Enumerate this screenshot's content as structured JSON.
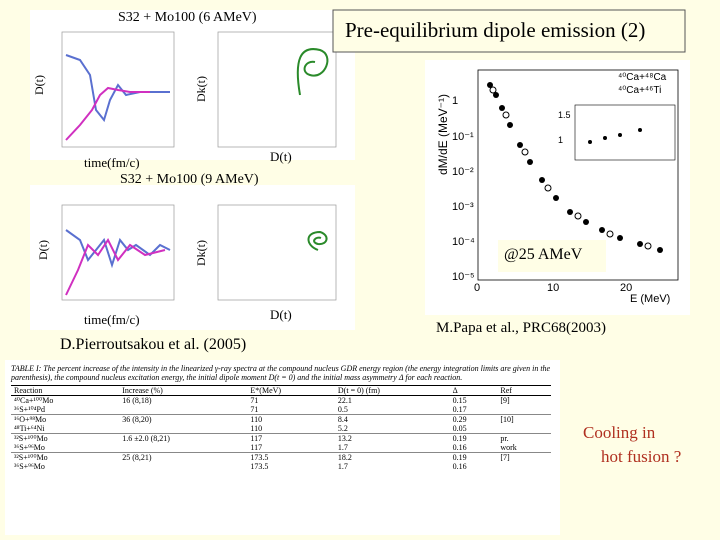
{
  "slide_title": "Pre-equilibrium dipole emission (2)",
  "left_panels": [
    {
      "title": "S32 + Mo100 (6 AMeV)",
      "y_label_left": "D(t)",
      "y_label_right": "Dk(t)",
      "x_label_left": "time(fm/c)",
      "x_label_right": "D(t)"
    },
    {
      "title": "S32 + Mo100 (9 AMeV)",
      "y_label_left": "D(t)",
      "y_label_right": "Dk(t)",
      "x_label_left": "time(fm/c)",
      "x_label_right": "D(t)"
    }
  ],
  "left_credit": "D.Pierroutsakou et al. (2005)",
  "right_plot": {
    "annotation": "@25 AMeV",
    "legend": [
      "⁴⁰Ca+⁴⁸Ca",
      "⁴⁰Ca+⁴⁶Ti"
    ],
    "y_label": "dM/dE (MeV⁻¹)",
    "x_label": "E (MeV)",
    "x_ticks": [
      "0",
      "10",
      "20"
    ],
    "y_ticks": [
      "1",
      "10⁻¹",
      "10⁻²",
      "10⁻³",
      "10⁻⁴",
      "10⁻⁵"
    ],
    "inset_ticks": [
      "1.5",
      "1"
    ]
  },
  "right_credit": "M.Papa et al., PRC68(2003)",
  "table": {
    "caption": "TABLE I: The percent increase of the intensity in the linearized γ-ray spectra at the compound nucleus GDR energy region (the energy integration limits are given in the parenthesis), the compound nucleus excitation energy, the initial dipole moment D(t = 0) and the initial mass asymmetry Δ for each reaction.",
    "header": [
      "Reaction",
      "Increase (%)",
      "E*(MeV)",
      "D(t = 0) (fm)",
      "Δ",
      "Ref"
    ],
    "rows": [
      [
        "⁴⁰Ca+¹⁰⁰Mo",
        "16 (8,18)",
        "71",
        "22.1",
        "0.15",
        "[9]"
      ],
      [
        "³⁶S+¹⁰⁴Pd",
        null,
        "71",
        "0.5",
        "0.17",
        null
      ],
      [
        "¹⁶O+⁹⁸Mo",
        "36 (8,20)",
        "110",
        "8.4",
        "0.29",
        "[10]"
      ],
      [
        "⁴⁸Ti+⁶⁴Ni",
        null,
        "110",
        "5.2",
        "0.05",
        null
      ],
      [
        "³²S+¹⁰⁰Mo",
        "1.6 ±2.0 (8,21)",
        "117",
        "13.2",
        "0.19",
        "pr."
      ],
      [
        "³⁶S+⁹⁶Mo",
        null,
        "117",
        "1.7",
        "0.16",
        "work"
      ],
      [
        "³²S+¹⁰⁰Mo",
        "25 (8,21)",
        "173.5",
        "18.2",
        "0.19",
        "[7]"
      ],
      [
        "³⁶S+⁹⁶Mo",
        null,
        "173.5",
        "1.7",
        "0.16",
        null
      ]
    ]
  },
  "note": [
    "Cooling in",
    "hot fusion ?"
  ]
}
